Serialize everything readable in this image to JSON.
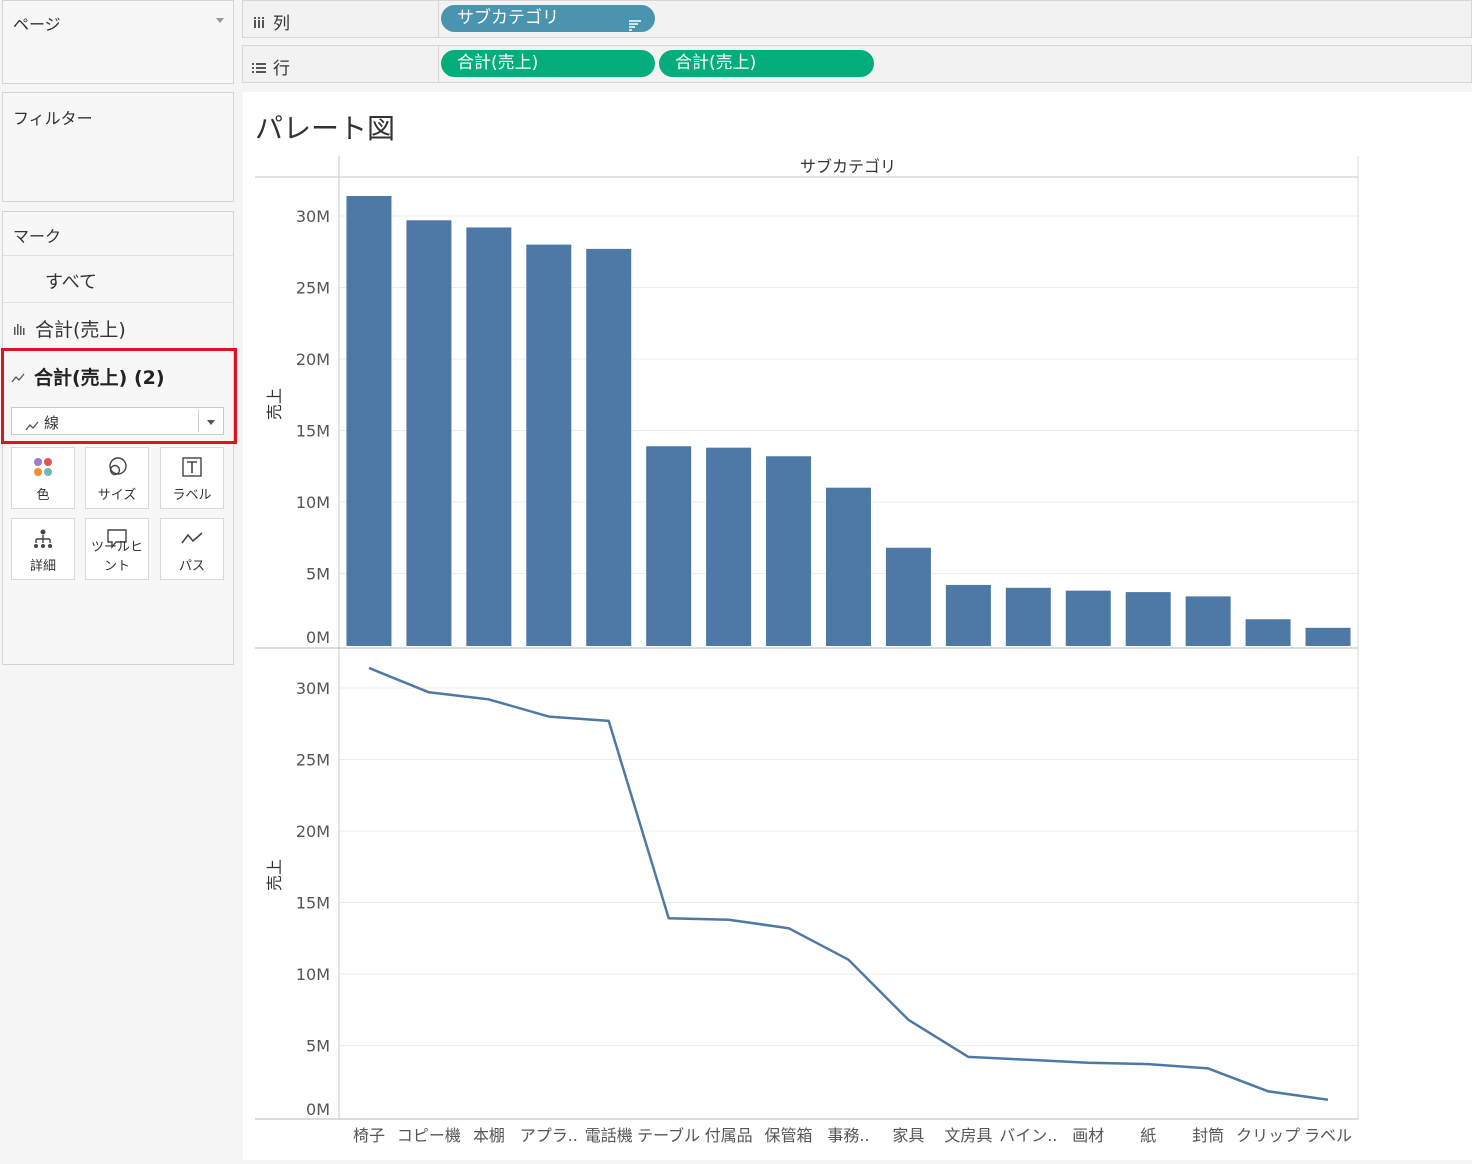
{
  "sidebar": {
    "pages_title": "ページ",
    "filters_title": "フィルター",
    "marks": {
      "title": "マーク",
      "all_label": "すべて",
      "items": [
        {
          "label": "合計(売上)",
          "icon": "bar-chart-icon"
        },
        {
          "label": "合計(売上) (2)",
          "icon": "line-chart-icon"
        }
      ],
      "mark_type": "線",
      "buttons": [
        {
          "label": "色",
          "icon": "color-icon"
        },
        {
          "label": "サイズ",
          "icon": "size-icon"
        },
        {
          "label": "ラベル",
          "icon": "label-icon"
        },
        {
          "label": "詳細",
          "icon": "detail-icon"
        },
        {
          "label": "ツールヒント",
          "icon": "tooltip-icon"
        },
        {
          "label": "パス",
          "icon": "path-icon"
        }
      ],
      "highlight_color": "#e0121e"
    }
  },
  "shelves": {
    "columns": {
      "label": "列",
      "pills": [
        {
          "label": "サブカテゴリ",
          "color": "#4a94b0"
        }
      ]
    },
    "rows": {
      "label": "行",
      "pills": [
        {
          "label": "合計(売上)",
          "color": "#05ac7c"
        },
        {
          "label": "合計(売上)",
          "color": "#05ac7c"
        }
      ]
    }
  },
  "chart_data": {
    "type": "bar",
    "title": "パレート図",
    "xlabel": "サブカテゴリ",
    "ylabel": "売上",
    "categories": [
      "椅子",
      "コピー機",
      "本棚",
      "アプラ..",
      "電話機",
      "テーブル",
      "付属品",
      "保管箱",
      "事務..",
      "家具",
      "文房具",
      "バイン..",
      "画材",
      "紙",
      "封筒",
      "クリップ",
      "ラベル"
    ],
    "series": [
      {
        "type": "bar",
        "values": [
          31.4,
          29.7,
          29.2,
          28.0,
          27.7,
          13.9,
          13.8,
          13.2,
          11.0,
          6.8,
          4.2,
          4.0,
          3.8,
          3.7,
          3.4,
          1.8,
          1.2
        ],
        "color": "#4e79a7"
      },
      {
        "type": "line",
        "values": [
          31.4,
          29.7,
          29.2,
          28.0,
          27.7,
          13.9,
          13.8,
          13.2,
          11.0,
          6.8,
          4.2,
          4.0,
          3.8,
          3.7,
          3.4,
          1.8,
          1.2
        ],
        "color": "#4e79a7"
      }
    ],
    "yticks": [
      "0M",
      "5M",
      "10M",
      "15M",
      "20M",
      "25M",
      "30M"
    ],
    "ylim": [
      0,
      32
    ],
    "grid": true
  }
}
